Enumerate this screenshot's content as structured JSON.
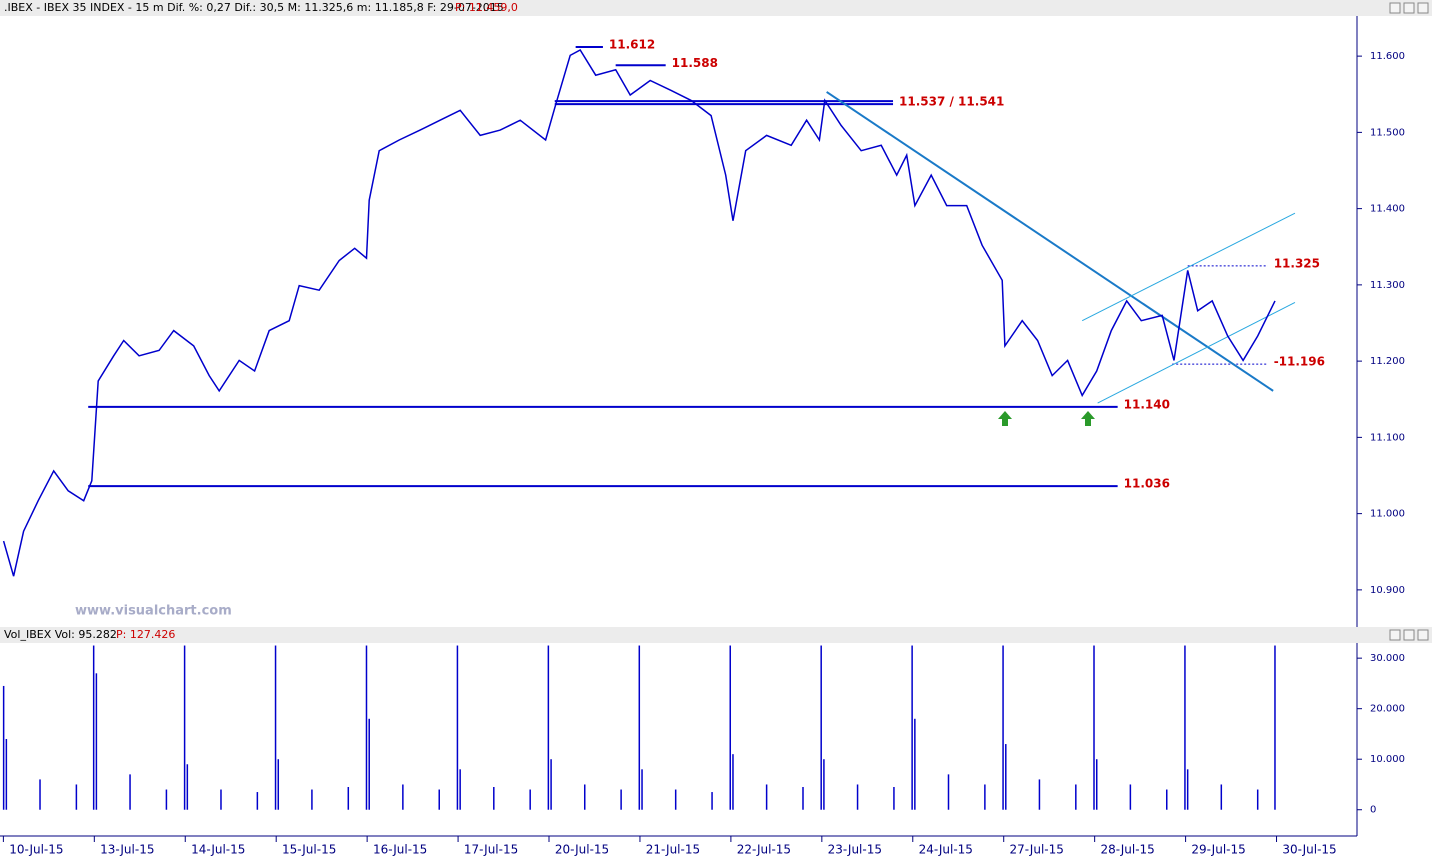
{
  "chart_data": [
    {
      "type": "line",
      "title": ".IBEX - IBEX 35 INDEX - 15 m  Dif. %: 0,27  Dif.: 30,5  M: 11.325,6  m: 11.185,8  F: 29-07-2015",
      "title_note": "P: 11.459,0",
      "watermark": "www.visualchart.com",
      "color": "#0000cc",
      "x": [
        -0.36,
        -0.25,
        -0.14,
        0.02,
        0.19,
        0.35,
        0.52,
        0.61,
        0.68,
        0.85,
        0.96,
        1.13,
        1.35,
        1.51,
        1.73,
        1.9,
        2.01,
        2.23,
        2.4,
        2.56,
        2.78,
        2.89,
        3.11,
        3.33,
        3.5,
        3.63,
        3.66,
        3.77,
        3.99,
        4.22,
        4.44,
        4.66,
        4.88,
        5.1,
        5.32,
        5.6,
        5.71,
        5.87,
        5.98,
        6.15,
        6.37,
        6.53,
        6.75,
        6.98,
        7.2,
        7.42,
        7.58,
        7.66,
        7.8,
        8.03,
        8.3,
        8.47,
        8.61,
        8.67,
        8.85,
        9.07,
        9.29,
        9.46,
        9.57,
        9.66,
        9.84,
        10.01,
        10.23,
        10.4,
        10.62,
        10.65,
        10.84,
        11.01,
        11.17,
        11.34,
        11.5,
        11.66,
        11.82,
        11.99,
        12.15,
        12.38,
        12.51,
        12.66,
        12.77,
        12.93,
        13.1,
        13.27,
        13.43,
        13.62
      ],
      "values": [
        10.964,
        10.918,
        10.977,
        11.017,
        11.056,
        11.03,
        11.017,
        11.043,
        11.174,
        11.207,
        11.227,
        11.207,
        11.214,
        11.24,
        11.22,
        11.181,
        11.161,
        11.201,
        11.187,
        11.24,
        11.253,
        11.299,
        11.293,
        11.332,
        11.348,
        11.335,
        11.411,
        11.476,
        11.49,
        11.503,
        11.516,
        11.529,
        11.496,
        11.503,
        11.516,
        11.49,
        11.536,
        11.601,
        11.608,
        11.575,
        11.582,
        11.549,
        11.568,
        11.555,
        11.542,
        11.522,
        11.444,
        11.384,
        11.476,
        11.496,
        11.483,
        11.516,
        11.49,
        11.542,
        11.509,
        11.476,
        11.483,
        11.444,
        11.47,
        11.404,
        11.444,
        11.404,
        11.404,
        11.352,
        11.306,
        11.22,
        11.253,
        11.227,
        11.181,
        11.201,
        11.155,
        11.187,
        11.24,
        11.279,
        11.253,
        11.26,
        11.201,
        11.319,
        11.266,
        11.279,
        11.233,
        11.201,
        11.233,
        11.279
      ],
      "xlim": [
        -0.4,
        14.5
      ],
      "ylim": [
        10.85,
        11.65
      ],
      "yticks": [
        {
          "value": 10.9,
          "label": "10.900"
        },
        {
          "value": 11.0,
          "label": "11.000"
        },
        {
          "value": 11.1,
          "label": "11.100"
        },
        {
          "value": 11.2,
          "label": "11.200"
        },
        {
          "value": 11.3,
          "label": "11.300"
        },
        {
          "value": 11.4,
          "label": "11.400"
        },
        {
          "value": 11.5,
          "label": "11.500"
        },
        {
          "value": 11.6,
          "label": "11.600"
        }
      ],
      "levels": [
        {
          "values": [
            11.612
          ],
          "label": "11.612",
          "x": [
            5.93,
            6.23
          ],
          "style": "solid",
          "color": "#0000cc"
        },
        {
          "values": [
            11.588
          ],
          "label": "11.588",
          "x": [
            6.37,
            6.92
          ],
          "style": "solid",
          "color": "#0000cc"
        },
        {
          "values": [
            11.537,
            11.541
          ],
          "label": "11.537 / 11.541",
          "x": [
            5.7,
            9.42
          ],
          "style": "solid",
          "color": "#0000cc"
        },
        {
          "values": [
            11.325
          ],
          "label": "11.325",
          "x": [
            12.66,
            13.54
          ],
          "style": "dotted",
          "color": "#0000cc"
        },
        {
          "values": [
            11.196
          ],
          "label": "-11.196",
          "x": [
            12.49,
            13.54
          ],
          "style": "dotted",
          "color": "#0000cc"
        },
        {
          "values": [
            11.14
          ],
          "label": "11.140",
          "x": [
            0.57,
            11.89
          ],
          "style": "solid",
          "color": "#0000cc"
        },
        {
          "values": [
            11.036
          ],
          "label": "11.036",
          "x": [
            0.57,
            11.89
          ],
          "style": "solid",
          "color": "#0000cc"
        }
      ],
      "level_label_color": "#cc0000",
      "trendlines": [
        {
          "x": [
            8.69,
            13.6
          ],
          "y": [
            11.553,
            11.161
          ],
          "color": "#1a7ac8"
        },
        {
          "x": [
            11.5,
            13.84
          ],
          "y": [
            11.253,
            11.394
          ],
          "color": "#29a8e0"
        },
        {
          "x": [
            11.67,
            13.84
          ],
          "y": [
            11.145,
            11.277
          ],
          "color": "#29a8e0"
        }
      ]
    },
    {
      "type": "bar",
      "title": "Vol_IBEX Vol: 95.282",
      "title_note": "P: 127.426",
      "color": "#0000cc",
      "x": [
        -0.36,
        -0.33,
        0.04,
        0.44,
        0.63,
        0.66,
        1.03,
        1.43,
        1.63,
        1.66,
        2.03,
        2.43,
        2.63,
        2.66,
        3.03,
        3.43,
        3.63,
        3.66,
        4.03,
        4.43,
        4.63,
        4.66,
        5.03,
        5.43,
        5.63,
        5.66,
        6.03,
        6.43,
        6.63,
        6.66,
        7.03,
        7.43,
        7.63,
        7.66,
        8.03,
        8.43,
        8.63,
        8.66,
        9.03,
        9.43,
        9.63,
        9.66,
        10.03,
        10.43,
        10.63,
        10.66,
        11.03,
        11.43,
        11.63,
        11.66,
        12.03,
        12.43,
        12.63,
        12.66,
        13.03,
        13.43,
        13.62
      ],
      "values": [
        24500,
        14000,
        6000,
        5000,
        32500,
        27000,
        7000,
        4000,
        32500,
        9000,
        4000,
        3500,
        32500,
        10000,
        4000,
        4500,
        32500,
        18000,
        5000,
        4000,
        32500,
        8000,
        4500,
        4000,
        32500,
        10000,
        5000,
        4000,
        32500,
        8000,
        4000,
        3500,
        32500,
        11000,
        5000,
        4500,
        32500,
        10000,
        5000,
        4500,
        32500,
        18000,
        7000,
        5000,
        32500,
        13000,
        6000,
        5000,
        32500,
        10000,
        5000,
        4000,
        32500,
        8000,
        5000,
        4000,
        32500
      ],
      "xlim": [
        -0.4,
        14.5
      ],
      "ylim": [
        -5000,
        33000
      ],
      "yticks": [
        0,
        {
          "value": 10000,
          "label": "10.000"
        },
        {
          "value": 20000,
          "label": "20.000"
        },
        {
          "value": 30000,
          "label": "30.000"
        }
      ],
      "xticks": [
        {
          "value": 0,
          "label": "10-Jul-15"
        },
        {
          "value": 1,
          "label": "13-Jul-15"
        },
        {
          "value": 2,
          "label": "14-Jul-15"
        },
        {
          "value": 3,
          "label": "15-Jul-15"
        },
        {
          "value": 4,
          "label": "16-Jul-15"
        },
        {
          "value": 5,
          "label": "17-Jul-15"
        },
        {
          "value": 6,
          "label": "20-Jul-15"
        },
        {
          "value": 7,
          "label": "21-Jul-15"
        },
        {
          "value": 8,
          "label": "22-Jul-15"
        },
        {
          "value": 9,
          "label": "23-Jul-15"
        },
        {
          "value": 10,
          "label": "24-Jul-15"
        },
        {
          "value": 11,
          "label": "27-Jul-15"
        },
        {
          "value": 12,
          "label": "28-Jul-15"
        },
        {
          "value": 13,
          "label": "29-Jul-15"
        },
        {
          "value": 14,
          "label": "30-Jul-15"
        }
      ]
    }
  ]
}
